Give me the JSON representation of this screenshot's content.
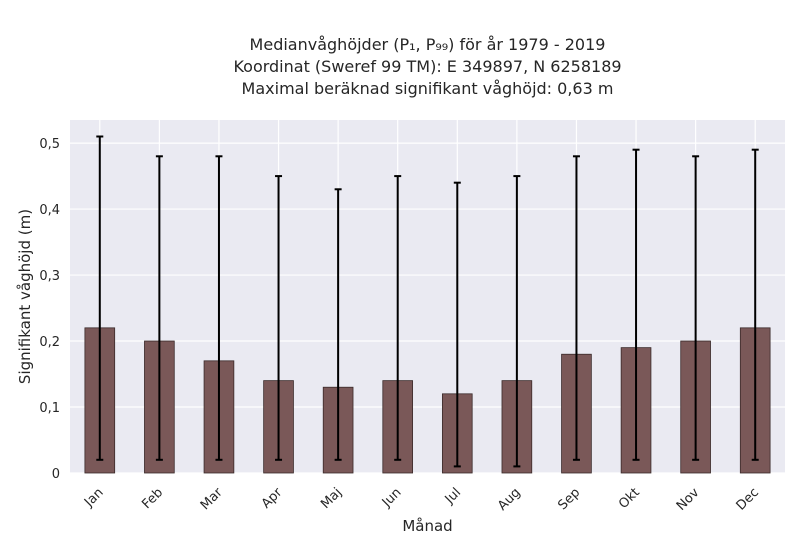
{
  "chart_data": {
    "type": "bar",
    "title_lines": [
      "Medianvåghöjder (P₁, P₉₉) för år 1979 - 2019",
      "Koordinat (Sweref 99 TM): E 349897, N 6258189",
      "Maximal beräknad signifikant våghöjd: 0,63 m"
    ],
    "xlabel": "Månad",
    "ylabel": "Signifikant våghöjd (m)",
    "categories": [
      "Jan",
      "Feb",
      "Mar",
      "Apr",
      "Maj",
      "Jun",
      "Jul",
      "Aug",
      "Sep",
      "Okt",
      "Nov",
      "Dec"
    ],
    "values": [
      0.22,
      0.2,
      0.17,
      0.14,
      0.13,
      0.14,
      0.12,
      0.14,
      0.18,
      0.19,
      0.2,
      0.22
    ],
    "p1": [
      0.02,
      0.02,
      0.02,
      0.02,
      0.02,
      0.02,
      0.01,
      0.01,
      0.02,
      0.02,
      0.02,
      0.02
    ],
    "p99": [
      0.51,
      0.48,
      0.48,
      0.45,
      0.43,
      0.45,
      0.44,
      0.45,
      0.48,
      0.49,
      0.48,
      0.49
    ],
    "ylim": [
      0,
      0.535
    ],
    "yticks": [
      0,
      0.1,
      0.2,
      0.3,
      0.4,
      0.5
    ],
    "ytick_labels": [
      "0",
      "0,1",
      "0,2",
      "0,3",
      "0,4",
      "0,5"
    ],
    "grid": true,
    "colors": {
      "bar": "#7a5858",
      "bar_edge": "#3a2a2a",
      "error": "#000000",
      "plot_bg": "#eaeaf2",
      "grid": "#ffffff"
    }
  }
}
